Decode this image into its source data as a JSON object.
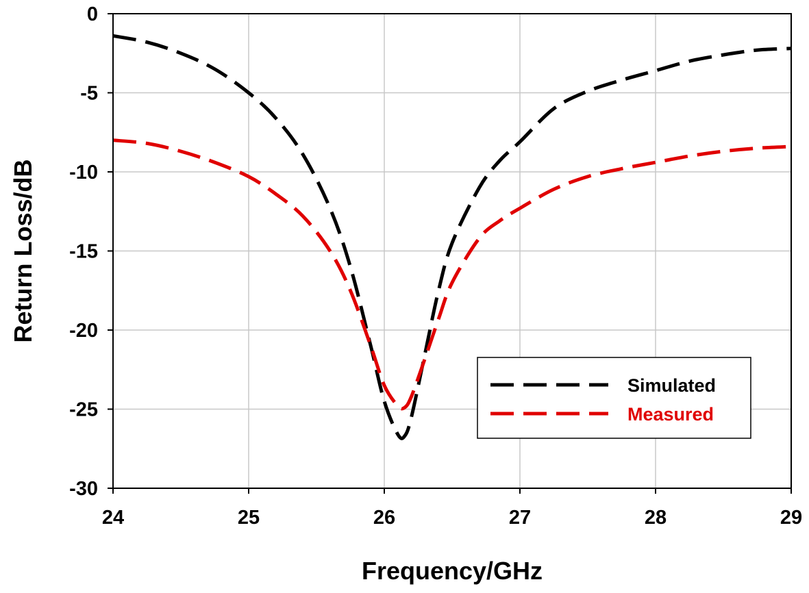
{
  "chart_data": {
    "type": "line",
    "xlabel": "Frequency/GHz",
    "ylabel": "Return Loss/dB",
    "xlim": [
      24,
      29
    ],
    "ylim": [
      -30,
      0
    ],
    "xticks": [
      "24",
      "25",
      "26",
      "27",
      "28",
      "29"
    ],
    "yticks": [
      "0",
      "-5",
      "-10",
      "-15",
      "-20",
      "-25",
      "-30"
    ],
    "grid": true,
    "legend_position": "lower-right",
    "series": [
      {
        "name": "Simulated",
        "color": "#000000",
        "style": "dashed",
        "x": [
          24.0,
          24.25,
          24.5,
          24.75,
          25.0,
          25.2,
          25.4,
          25.6,
          25.75,
          25.9,
          26.0,
          26.1,
          26.15,
          26.2,
          26.3,
          26.4,
          26.5,
          26.7,
          26.85,
          27.0,
          27.25,
          27.5,
          27.75,
          28.0,
          28.25,
          28.5,
          28.75,
          29.0
        ],
        "y": [
          -1.4,
          -1.8,
          -2.5,
          -3.5,
          -5.0,
          -6.6,
          -8.9,
          -12.3,
          -16.0,
          -21.0,
          -24.5,
          -26.6,
          -26.7,
          -25.5,
          -21.5,
          -17.5,
          -14.5,
          -11.0,
          -9.3,
          -8.1,
          -6.0,
          -4.9,
          -4.2,
          -3.6,
          -3.0,
          -2.6,
          -2.3,
          -2.2
        ]
      },
      {
        "name": "Measured",
        "color": "#e00000",
        "style": "dashed",
        "x": [
          24.0,
          24.25,
          24.5,
          24.75,
          25.0,
          25.2,
          25.4,
          25.6,
          25.75,
          25.9,
          26.0,
          26.1,
          26.15,
          26.2,
          26.3,
          26.4,
          26.5,
          26.7,
          26.85,
          27.0,
          27.25,
          27.5,
          27.75,
          28.0,
          28.25,
          28.5,
          28.75,
          29.0
        ],
        "y": [
          -8.0,
          -8.2,
          -8.7,
          -9.4,
          -10.3,
          -11.4,
          -12.8,
          -15.0,
          -17.5,
          -21.0,
          -23.5,
          -24.8,
          -24.9,
          -24.2,
          -21.8,
          -19.3,
          -17.0,
          -14.2,
          -13.1,
          -12.3,
          -11.1,
          -10.3,
          -9.8,
          -9.4,
          -9.0,
          -8.7,
          -8.5,
          -8.4
        ]
      }
    ]
  }
}
